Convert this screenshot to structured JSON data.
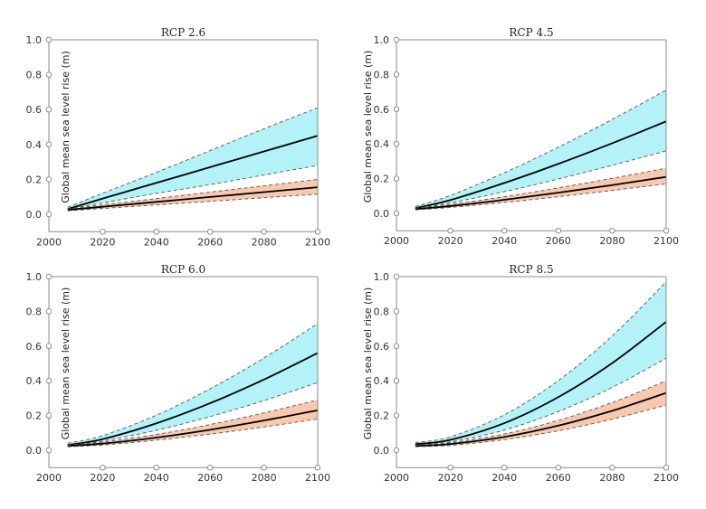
{
  "chart_data": [
    {
      "type": "area",
      "title": "RCP 2.6",
      "ylabel": "Global mean sea level rise (m)",
      "xlabel": "",
      "xlim": [
        2000,
        2100
      ],
      "ylim": [
        -0.1,
        1.0
      ],
      "xticks": [
        "2000",
        "2020",
        "2040",
        "2060",
        "2080",
        "2100"
      ],
      "yticks": [
        "0.0",
        "0.2",
        "0.4",
        "0.6",
        "0.8",
        "1.0"
      ],
      "x": [
        2007,
        2020,
        2040,
        2060,
        2080,
        2100
      ],
      "series": [
        {
          "name": "upper-median",
          "color": "#000000",
          "values": [
            0.03,
            0.09,
            0.18,
            0.27,
            0.36,
            0.45
          ]
        },
        {
          "name": "upper-high",
          "values": [
            0.04,
            0.12,
            0.24,
            0.365,
            0.49,
            0.61
          ]
        },
        {
          "name": "upper-low",
          "values": [
            0.03,
            0.065,
            0.12,
            0.17,
            0.225,
            0.28
          ]
        },
        {
          "name": "lower-median",
          "color": "#000000",
          "values": [
            0.025,
            0.043,
            0.071,
            0.099,
            0.127,
            0.155
          ]
        },
        {
          "name": "lower-high",
          "values": [
            0.03,
            0.054,
            0.09,
            0.127,
            0.163,
            0.2
          ]
        },
        {
          "name": "lower-low",
          "values": [
            0.02,
            0.033,
            0.054,
            0.074,
            0.095,
            0.115
          ]
        }
      ]
    },
    {
      "type": "area",
      "title": "RCP 4.5",
      "ylabel": "Global mean sea level rise (m)",
      "xlabel": "",
      "xlim": [
        2000,
        2100
      ],
      "ylim": [
        -0.1,
        1.0
      ],
      "xticks": [
        "2000",
        "2020",
        "2040",
        "2060",
        "2080",
        "2100"
      ],
      "yticks": [
        "0.0",
        "0.2",
        "0.4",
        "0.6",
        "0.8",
        "1.0"
      ],
      "x": [
        2007,
        2020,
        2040,
        2060,
        2080,
        2100
      ],
      "series": [
        {
          "name": "upper-median",
          "values": [
            0.03,
            0.077,
            0.175,
            0.285,
            0.404,
            0.53
          ]
        },
        {
          "name": "upper-high",
          "values": [
            0.04,
            0.103,
            0.234,
            0.381,
            0.541,
            0.71
          ]
        },
        {
          "name": "upper-low",
          "values": [
            0.03,
            0.061,
            0.125,
            0.198,
            0.277,
            0.36
          ]
        },
        {
          "name": "lower-median",
          "values": [
            0.025,
            0.042,
            0.078,
            0.119,
            0.163,
            0.21
          ]
        },
        {
          "name": "lower-high",
          "values": [
            0.03,
            0.052,
            0.096,
            0.147,
            0.202,
            0.26
          ]
        },
        {
          "name": "lower-low",
          "values": [
            0.02,
            0.034,
            0.063,
            0.096,
            0.132,
            0.17
          ]
        }
      ]
    },
    {
      "type": "area",
      "title": "RCP 6.0",
      "ylabel": "Global mean sea level rise (m)",
      "xlabel": "",
      "xlim": [
        2000,
        2100
      ],
      "ylim": [
        -0.1,
        1.0
      ],
      "xticks": [
        "2000",
        "2020",
        "2040",
        "2060",
        "2080",
        "2100"
      ],
      "yticks": [
        "0.0",
        "0.2",
        "0.4",
        "0.6",
        "0.8",
        "1.0"
      ],
      "x": [
        2007,
        2020,
        2040,
        2060,
        2080,
        2100
      ],
      "series": [
        {
          "name": "upper-median",
          "values": [
            0.03,
            0.064,
            0.155,
            0.271,
            0.407,
            0.56
          ]
        },
        {
          "name": "upper-high",
          "values": [
            0.04,
            0.084,
            0.202,
            0.354,
            0.531,
            0.73
          ]
        },
        {
          "name": "upper-low",
          "values": [
            0.03,
            0.053,
            0.115,
            0.194,
            0.286,
            0.39
          ]
        },
        {
          "name": "lower-median",
          "values": [
            0.025,
            0.038,
            0.073,
            0.118,
            0.171,
            0.23
          ]
        },
        {
          "name": "lower-high",
          "values": [
            0.03,
            0.047,
            0.091,
            0.148,
            0.215,
            0.29
          ]
        },
        {
          "name": "lower-low",
          "values": [
            0.02,
            0.03,
            0.058,
            0.093,
            0.134,
            0.18
          ]
        }
      ]
    },
    {
      "type": "area",
      "title": "RCP 8.5",
      "ylabel": "Global mean sea level rise (m)",
      "xlabel": "",
      "xlim": [
        2000,
        2100
      ],
      "ylim": [
        -0.1,
        1.0
      ],
      "xticks": [
        "2000",
        "2020",
        "2040",
        "2060",
        "2080",
        "2100"
      ],
      "yticks": [
        "0.0",
        "0.2",
        "0.4",
        "0.6",
        "0.8",
        "1.0"
      ],
      "x": [
        2007,
        2020,
        2040,
        2060,
        2080,
        2100
      ],
      "series": [
        {
          "name": "upper-median",
          "values": [
            0.035,
            0.06,
            0.156,
            0.306,
            0.502,
            0.74
          ]
        },
        {
          "name": "upper-high",
          "values": [
            0.045,
            0.077,
            0.204,
            0.401,
            0.658,
            0.97
          ]
        },
        {
          "name": "upper-low",
          "values": [
            0.03,
            0.048,
            0.116,
            0.223,
            0.362,
            0.53
          ]
        },
        {
          "name": "lower-median",
          "values": [
            0.025,
            0.036,
            0.077,
            0.142,
            0.227,
            0.33
          ]
        },
        {
          "name": "lower-high",
          "values": [
            0.03,
            0.043,
            0.094,
            0.172,
            0.275,
            0.4
          ]
        },
        {
          "name": "lower-low",
          "values": [
            0.02,
            0.028,
            0.061,
            0.112,
            0.179,
            0.26
          ]
        }
      ]
    }
  ],
  "colors": {
    "upper_band": "#b3f2f7",
    "lower_band": "#f8c9ae",
    "median": "#000000",
    "bounds": "#555555",
    "axis": "#888888"
  }
}
